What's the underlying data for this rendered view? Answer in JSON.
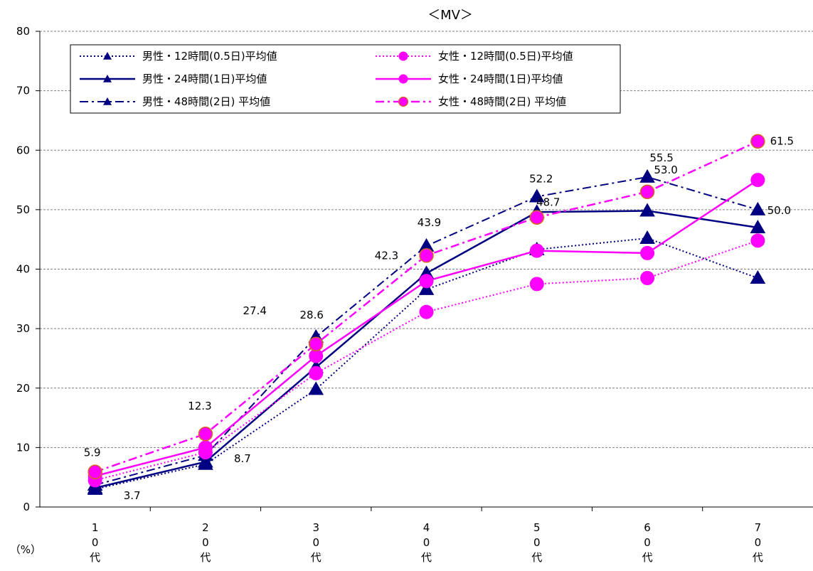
{
  "chart_data": {
    "type": "line",
    "title": "＜MV＞",
    "ylabel": "（%）",
    "xlabel": "",
    "ylim": [
      0,
      80
    ],
    "yticks": [
      0,
      10,
      20,
      30,
      40,
      50,
      60,
      70,
      80
    ],
    "grid": true,
    "legend_position": "top-left",
    "categories": [
      "10代",
      "20代",
      "30代",
      "40代",
      "50代",
      "60代",
      "70代"
    ],
    "category_label_chars": [
      [
        "1",
        "0",
        "代"
      ],
      [
        "2",
        "0",
        "代"
      ],
      [
        "3",
        "0",
        "代"
      ],
      [
        "4",
        "0",
        "代"
      ],
      [
        "5",
        "0",
        "代"
      ],
      [
        "6",
        "0",
        "代"
      ],
      [
        "7",
        "0",
        "代"
      ]
    ],
    "series": [
      {
        "name": "男性・12時間(0.5日)平均値",
        "values": [
          3.0,
          7.2,
          19.8,
          36.6,
          43.3,
          45.2,
          38.5
        ],
        "color": "#000080",
        "dash": "dotted",
        "marker": "triangle"
      },
      {
        "name": "男性・24時間(1日)平均値",
        "values": [
          3.2,
          7.6,
          23.5,
          39.3,
          49.6,
          49.8,
          47.0
        ],
        "color": "#000080",
        "dash": "solid",
        "marker": "triangle"
      },
      {
        "name": "男性・48時間(2日) 平均値",
        "values": [
          3.7,
          8.7,
          28.6,
          43.9,
          52.2,
          55.5,
          50.0
        ],
        "color": "#000080",
        "dash": "dashdot",
        "marker": "triangle"
      },
      {
        "name": "女性・12時間(0.5日)平均値",
        "values": [
          4.5,
          9.2,
          22.5,
          32.8,
          37.5,
          38.5,
          44.8
        ],
        "color": "#ff00ff",
        "dash": "dotted",
        "marker": "circle"
      },
      {
        "name": "女性・24時間(1日)平均値",
        "values": [
          5.2,
          10.0,
          25.4,
          38.0,
          43.1,
          42.7,
          55.0
        ],
        "color": "#ff00ff",
        "dash": "solid",
        "marker": "circle"
      },
      {
        "name": "女性・48時間(2日) 平均値",
        "values": [
          5.9,
          12.3,
          27.4,
          42.3,
          48.7,
          53.0,
          61.5
        ],
        "color": "#ff00ff",
        "dash": "dashdot",
        "marker": "circle-orange"
      }
    ],
    "data_labels": [
      {
        "series": 2,
        "index": 0,
        "text": "3.7"
      },
      {
        "series": 2,
        "index": 1,
        "text": "8.7"
      },
      {
        "series": 2,
        "index": 2,
        "text": "28.6"
      },
      {
        "series": 2,
        "index": 3,
        "text": "43.9"
      },
      {
        "series": 2,
        "index": 4,
        "text": "52.2"
      },
      {
        "series": 2,
        "index": 5,
        "text": "55.5"
      },
      {
        "series": 2,
        "index": 6,
        "text": "50.0"
      },
      {
        "series": 5,
        "index": 0,
        "text": "5.9"
      },
      {
        "series": 5,
        "index": 1,
        "text": "12.3"
      },
      {
        "series": 5,
        "index": 2,
        "text": "27.4"
      },
      {
        "series": 5,
        "index": 3,
        "text": "42.3"
      },
      {
        "series": 5,
        "index": 4,
        "text": "48.7"
      },
      {
        "series": 5,
        "index": 5,
        "text": "53.0"
      },
      {
        "series": 5,
        "index": 6,
        "text": "61.5"
      }
    ]
  }
}
